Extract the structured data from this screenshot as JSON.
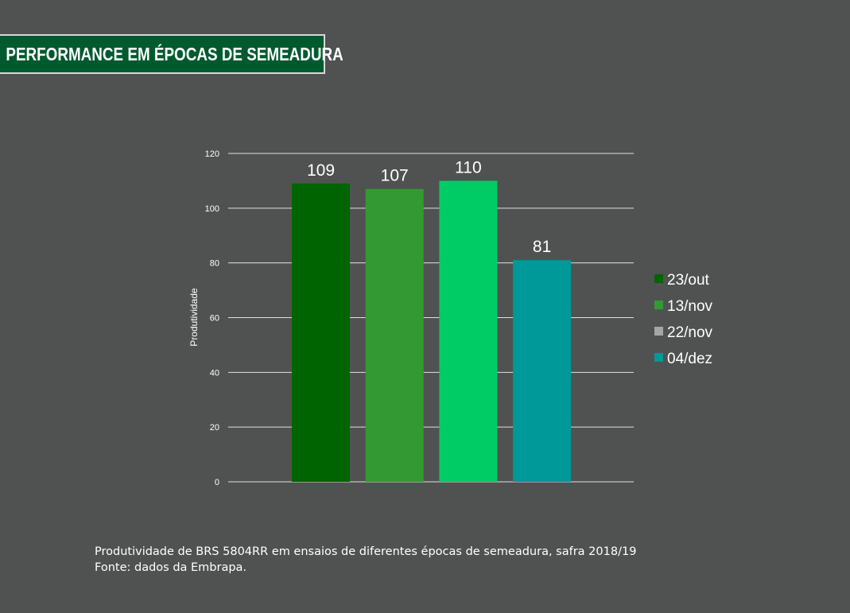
{
  "banner": {
    "title": "PERFORMANCE EM ÉPOCAS DE SEMEADURA"
  },
  "caption": {
    "line1": "Produtividade de BRS 5804RR em ensaios de diferentes épocas de semeadura, safra 2018/19",
    "line2": "Fonte: dados da Embrapa."
  },
  "chart_data": {
    "type": "bar",
    "title": "",
    "xlabel": "",
    "ylabel": "Produtividade",
    "ylim": [
      0,
      120
    ],
    "yticks": [
      0,
      20,
      40,
      60,
      80,
      100,
      120
    ],
    "grid": true,
    "legend_position": "right",
    "series": [
      {
        "name": "23/out",
        "value": 109,
        "color": "#006400",
        "legend_color": "#006400"
      },
      {
        "name": "13/nov",
        "value": 107,
        "color": "#339933",
        "legend_color": "#339933"
      },
      {
        "name": "22/nov",
        "value": 110,
        "color": "#00cc66",
        "legend_color": "#a6a6a6"
      },
      {
        "name": "04/dez",
        "value": 81,
        "color": "#009999",
        "legend_color": "#009999"
      }
    ]
  }
}
